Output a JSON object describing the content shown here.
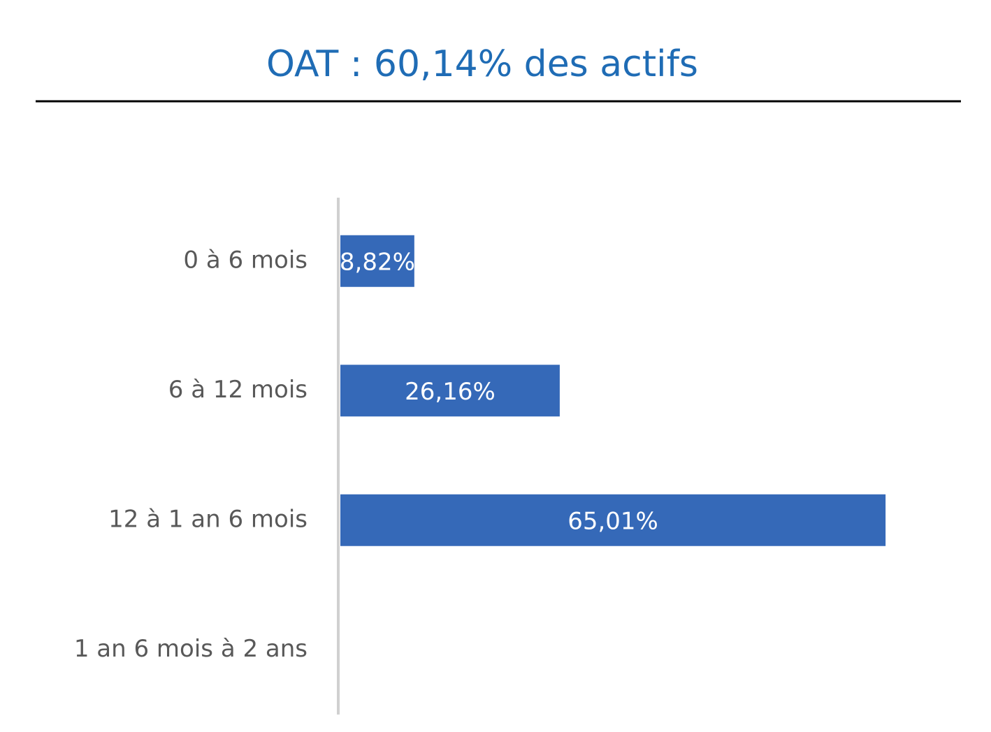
{
  "chart_data": {
    "type": "hbar",
    "title": "OAT :  60,14% des actifs",
    "categories": [
      "0 à 6 mois",
      "6 à 12 mois",
      "12 à 1 an 6 mois",
      "1 an 6 mois à 2 ans"
    ],
    "values": [
      8.82,
      26.16,
      65.01,
      0
    ],
    "value_labels": [
      "8,82%",
      "26,16%",
      "65,01%",
      null
    ],
    "color": "#3569b8",
    "xlim": [
      0,
      75
    ]
  }
}
